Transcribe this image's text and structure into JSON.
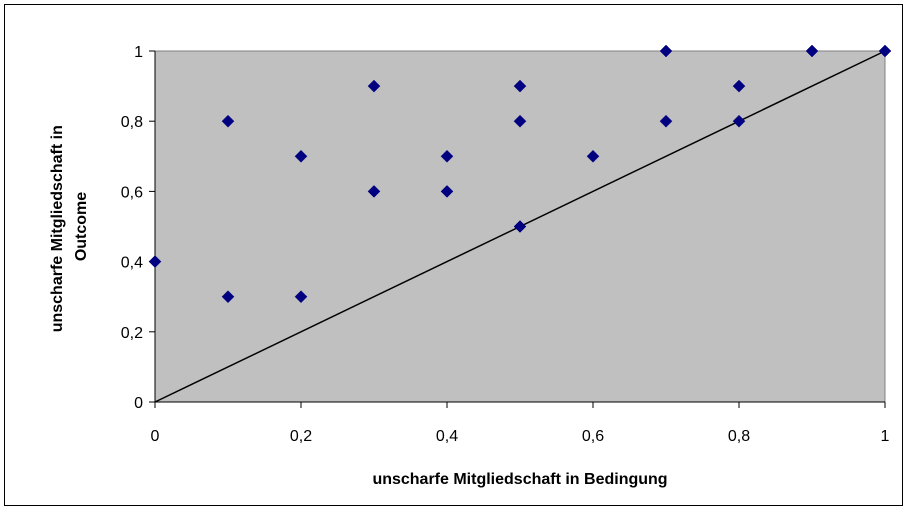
{
  "chart_data": {
    "type": "scatter",
    "title": "",
    "xlabel": "unscharfe Mitgliedschaft in Bedingung",
    "ylabel_lines": [
      "unscharfe Mitgliedschaft in",
      "Outcome"
    ],
    "xlim": [
      0,
      1
    ],
    "ylim": [
      0,
      1
    ],
    "x_ticks": [
      "0",
      "0,2",
      "0,4",
      "0,6",
      "0,8",
      "1"
    ],
    "x_tick_values": [
      0,
      0.2,
      0.4,
      0.6,
      0.8,
      1
    ],
    "y_ticks": [
      "0",
      "0,2",
      "0,4",
      "0,6",
      "0,8",
      "1"
    ],
    "y_tick_values": [
      0,
      0.2,
      0.4,
      0.6,
      0.8,
      1
    ],
    "grid": false,
    "legend": "none",
    "plot_background": "#c0c0c0",
    "marker_color": "#000080",
    "reference_line": {
      "from": [
        0,
        0
      ],
      "to": [
        1,
        1
      ],
      "color": "#000000"
    },
    "points": [
      {
        "x": 0,
        "y": 0.4
      },
      {
        "x": 0.1,
        "y": 0.8
      },
      {
        "x": 0.1,
        "y": 0.3
      },
      {
        "x": 0.2,
        "y": 0.7
      },
      {
        "x": 0.2,
        "y": 0.3
      },
      {
        "x": 0.3,
        "y": 0.9
      },
      {
        "x": 0.3,
        "y": 0.6
      },
      {
        "x": 0.4,
        "y": 0.7
      },
      {
        "x": 0.4,
        "y": 0.6
      },
      {
        "x": 0.5,
        "y": 0.9
      },
      {
        "x": 0.5,
        "y": 0.8
      },
      {
        "x": 0.5,
        "y": 0.5
      },
      {
        "x": 0.6,
        "y": 0.7
      },
      {
        "x": 0.7,
        "y": 1
      },
      {
        "x": 0.7,
        "y": 0.8
      },
      {
        "x": 0.8,
        "y": 0.9
      },
      {
        "x": 0.8,
        "y": 0.8
      },
      {
        "x": 0.9,
        "y": 1
      },
      {
        "x": 1,
        "y": 1
      }
    ]
  }
}
